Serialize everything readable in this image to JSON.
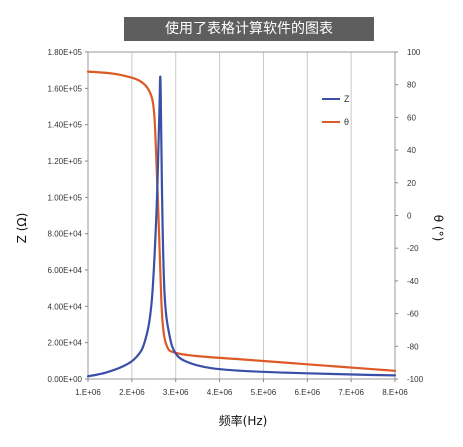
{
  "chart_data": {
    "type": "line",
    "title": "使用了表格计算软件的图表",
    "xlabel": "频率(Hz)",
    "ylabel_left": "Z (Ω)",
    "ylabel_right": "θ (°)",
    "xlim": [
      1000000,
      8000000
    ],
    "ylim_left": [
      0,
      180000
    ],
    "ylim_right": [
      -100,
      100
    ],
    "x_ticks": [
      {
        "value": 1000000,
        "label": "1.E+06"
      },
      {
        "value": 2000000,
        "label": "2.E+06"
      },
      {
        "value": 3000000,
        "label": "3.E+06"
      },
      {
        "value": 4000000,
        "label": "4.E+06"
      },
      {
        "value": 5000000,
        "label": "5.E+06"
      },
      {
        "value": 6000000,
        "label": "6.E+06"
      },
      {
        "value": 7000000,
        "label": "7.E+06"
      },
      {
        "value": 8000000,
        "label": "8.E+06"
      }
    ],
    "y_left_ticks": [
      {
        "value": 0,
        "label": "0.00E+00"
      },
      {
        "value": 20000,
        "label": "2.00E+04"
      },
      {
        "value": 40000,
        "label": "4.00E+04"
      },
      {
        "value": 60000,
        "label": "6.00E+04"
      },
      {
        "value": 80000,
        "label": "8.00E+04"
      },
      {
        "value": 100000,
        "label": "1.00E+05"
      },
      {
        "value": 120000,
        "label": "1.20E+05"
      },
      {
        "value": 140000,
        "label": "1.40E+05"
      },
      {
        "value": 160000,
        "label": "1.60E+05"
      },
      {
        "value": 180000,
        "label": "1.80E+05"
      }
    ],
    "y_right_ticks": [
      {
        "value": 100,
        "label": "100"
      },
      {
        "value": 80,
        "label": "80"
      },
      {
        "value": 60,
        "label": "60"
      },
      {
        "value": 40,
        "label": "40"
      },
      {
        "value": 20,
        "label": "20"
      },
      {
        "value": 0,
        "label": "0"
      },
      {
        "value": -20,
        "label": "-20"
      },
      {
        "value": -40,
        "label": "-40"
      },
      {
        "value": -60,
        "label": "-60"
      },
      {
        "value": -80,
        "label": "-80"
      },
      {
        "value": -100,
        "label": "-100"
      }
    ],
    "grid": {
      "vertical": true,
      "horizontal": false
    },
    "legend_position": "upper-right",
    "series": [
      {
        "name": "Z",
        "axis": "left",
        "color": "#3a4fa8",
        "x": [
          1000000,
          1400000,
          1800000,
          2100000,
          2300000,
          2450000,
          2550000,
          2600000,
          2630000,
          2650000,
          2670000,
          2700000,
          2750000,
          2850000,
          3000000,
          3300000,
          3800000,
          4500000,
          5500000,
          6500000,
          7500000,
          8000000
        ],
        "values": [
          1500,
          3500,
          7000,
          12000,
          21000,
          42000,
          85000,
          122000,
          150000,
          166000,
          135000,
          85000,
          45000,
          25000,
          14000,
          9000,
          6000,
          4500,
          3500,
          2800,
          2200,
          2000
        ]
      },
      {
        "name": "θ",
        "axis": "right",
        "color": "#dd5a24",
        "x": [
          1000000,
          1500000,
          1900000,
          2200000,
          2400000,
          2500000,
          2550000,
          2600000,
          2650000,
          2700000,
          2800000,
          3000000,
          3500000,
          4500000,
          5500000,
          6500000,
          7500000,
          8000000
        ],
        "values": [
          88,
          87,
          85,
          82,
          76,
          65,
          40,
          5,
          -35,
          -65,
          -80,
          -84,
          -86,
          -88,
          -90,
          -92,
          -94,
          -95
        ]
      }
    ]
  }
}
